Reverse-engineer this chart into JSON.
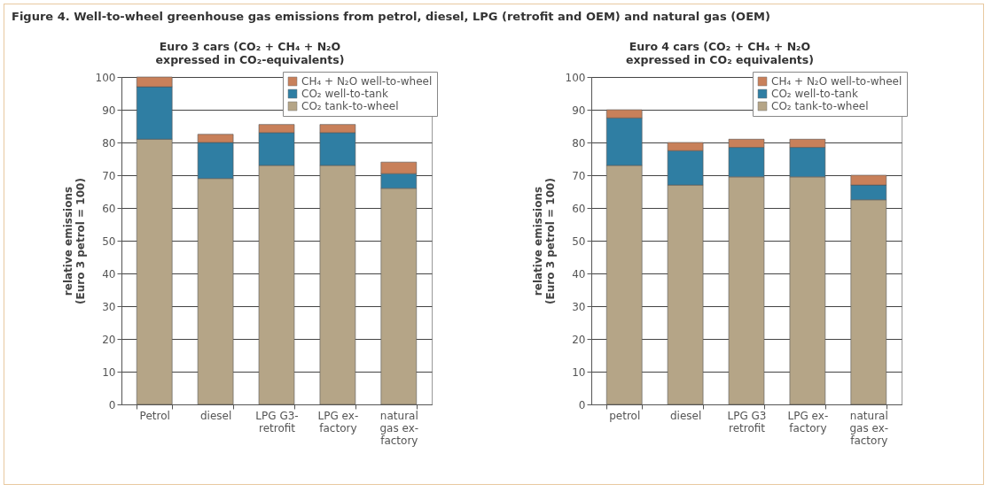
{
  "chart_data": [
    {
      "type": "bar",
      "title": "Figure 4. Well-to-wheel greenhouse gas emissions from petrol, diesel, LPG (retrofit and OEM) and natural gas (OEM)",
      "subtitle": "Euro 3 cars (CO₂ + CH₄ + N₂O expressed in CO₂-equivalents)",
      "ylabel": "relative emissions (Euro 3 petrol = 100)",
      "categories": [
        "Petrol",
        "diesel",
        "LPG G3-retrofit",
        "LPG ex-factory",
        "natural gas ex-factory"
      ],
      "stacked": true,
      "series": [
        {
          "name": "CO₂ tank-to-wheel",
          "color": "#b5a587",
          "values": [
            81,
            69,
            73,
            73,
            66
          ]
        },
        {
          "name": "CO₂ well-to-tank",
          "color": "#2f7ea3",
          "values": [
            16,
            11,
            10,
            10,
            4.5
          ]
        },
        {
          "name": "CH₄ + N₂O well-to-wheel",
          "color": "#c8805a",
          "values": [
            3,
            2.5,
            2.5,
            2.5,
            3.5
          ]
        }
      ],
      "ylim": [
        0,
        100
      ],
      "yticks": [
        0,
        10,
        20,
        30,
        40,
        50,
        60,
        70,
        80,
        90,
        100
      ],
      "grid": "y",
      "legend": "top right"
    },
    {
      "type": "bar",
      "subtitle": "Euro 4 cars (CO₂ + CH₄ + N₂O expressed in CO₂ equivalents)",
      "ylabel": "relative emissions (Euro 3 petrol = 100)",
      "categories": [
        "petrol",
        "diesel",
        "LPG G3 retrofit",
        "LPG ex-factory",
        "natural gas ex-factory"
      ],
      "stacked": true,
      "series": [
        {
          "name": "CO₂ tank-to-wheel",
          "color": "#b5a587",
          "values": [
            73,
            67,
            69.5,
            69.5,
            62.5
          ]
        },
        {
          "name": "CO₂ well-to-tank",
          "color": "#2f7ea3",
          "values": [
            14.5,
            10.5,
            9,
            9,
            4.5
          ]
        },
        {
          "name": "CH₄ + N₂O well-to-wheel",
          "color": "#c8805a",
          "values": [
            2.5,
            2.5,
            2.5,
            2.5,
            3
          ]
        }
      ],
      "ylim": [
        0,
        100
      ],
      "yticks": [
        0,
        10,
        20,
        30,
        40,
        50,
        60,
        70,
        80,
        90,
        100
      ],
      "grid": "y",
      "legend": "top right"
    }
  ]
}
